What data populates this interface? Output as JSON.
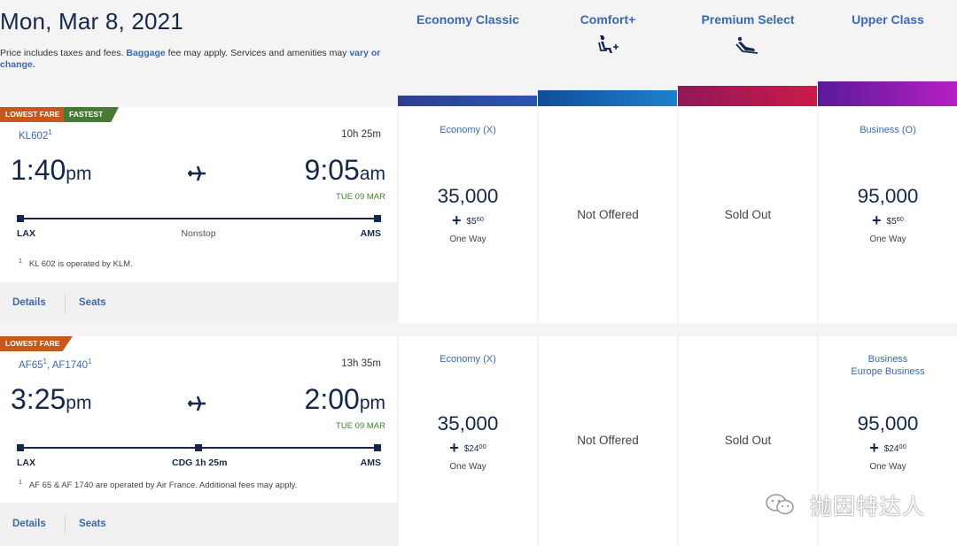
{
  "header": {
    "date": "Mon, Mar 8, 2021",
    "note_prefix": "Price includes taxes and fees.",
    "note_baggage": "Baggage",
    "note_middle": " fee may apply. Services and amenities may ",
    "note_vary": "vary or change."
  },
  "cabins": [
    {
      "label": "Economy Classic",
      "icon": "none",
      "bar_color": "#2b4a9a"
    },
    {
      "label": "Comfort+",
      "icon": "comfort-seat-icon",
      "bar_color": "#1565b8"
    },
    {
      "label": "Premium Select",
      "icon": "recline-seat-icon",
      "bar_color": "#b0174d"
    },
    {
      "label": "Upper Class",
      "icon": "none",
      "bar_color": "#8a1cb4"
    }
  ],
  "flights": [
    {
      "badges": [
        "LOWEST FARE",
        "FASTEST"
      ],
      "flight_numbers": "KL602",
      "flight_sup": "1",
      "duration": "10h 25m",
      "depart_time": "1:40",
      "depart_ampm": "pm",
      "arrive_time": "9:05",
      "arrive_ampm": "am",
      "arrive_date": "TUE 09 MAR",
      "origin": "LAX",
      "destination": "AMS",
      "stop_label": "Nonstop",
      "footnote_num": "1",
      "footnote": "KL 602 is operated by KLM.",
      "details_label": "Details",
      "seats_label": "Seats",
      "fares": {
        "economy": {
          "fare_class": "Economy (X)",
          "miles": "35,000",
          "fee_dollars": "$5",
          "fee_cents": "60",
          "trip": "One Way"
        },
        "comfort": {
          "status": "Not Offered"
        },
        "premium": {
          "status": "Sold Out"
        },
        "upper": {
          "fare_class": "Business (O)",
          "miles": "95,000",
          "fee_dollars": "$5",
          "fee_cents": "60",
          "trip": "One Way"
        }
      }
    },
    {
      "badges": [
        "LOWEST FARE"
      ],
      "flight_numbers_a": "AF65",
      "flight_sup_a": "1",
      "flight_numbers_b": ", AF1740",
      "flight_sup_b": "1",
      "duration": "13h 35m",
      "depart_time": "3:25",
      "depart_ampm": "pm",
      "arrive_time": "2:00",
      "arrive_ampm": "pm",
      "arrive_date": "TUE 09 MAR",
      "origin": "LAX",
      "connection": "CDG",
      "layover": "1h 25m",
      "destination": "AMS",
      "footnote_num": "1",
      "footnote": "AF 65 & AF 1740 are operated by Air France. Additional fees may apply.",
      "details_label": "Details",
      "seats_label": "Seats",
      "fares": {
        "economy": {
          "fare_class": "Economy (X)",
          "miles": "35,000",
          "fee_dollars": "$24",
          "fee_cents": "00",
          "trip": "One Way"
        },
        "comfort": {
          "status": "Not Offered"
        },
        "premium": {
          "status": "Sold Out"
        },
        "upper": {
          "fare_class_1": "Business",
          "fare_class_2": "Europe Business",
          "miles": "95,000",
          "fee_dollars": "$24",
          "fee_cents": "00",
          "trip": "One Way"
        }
      }
    }
  ],
  "watermark": "抛因特达人"
}
